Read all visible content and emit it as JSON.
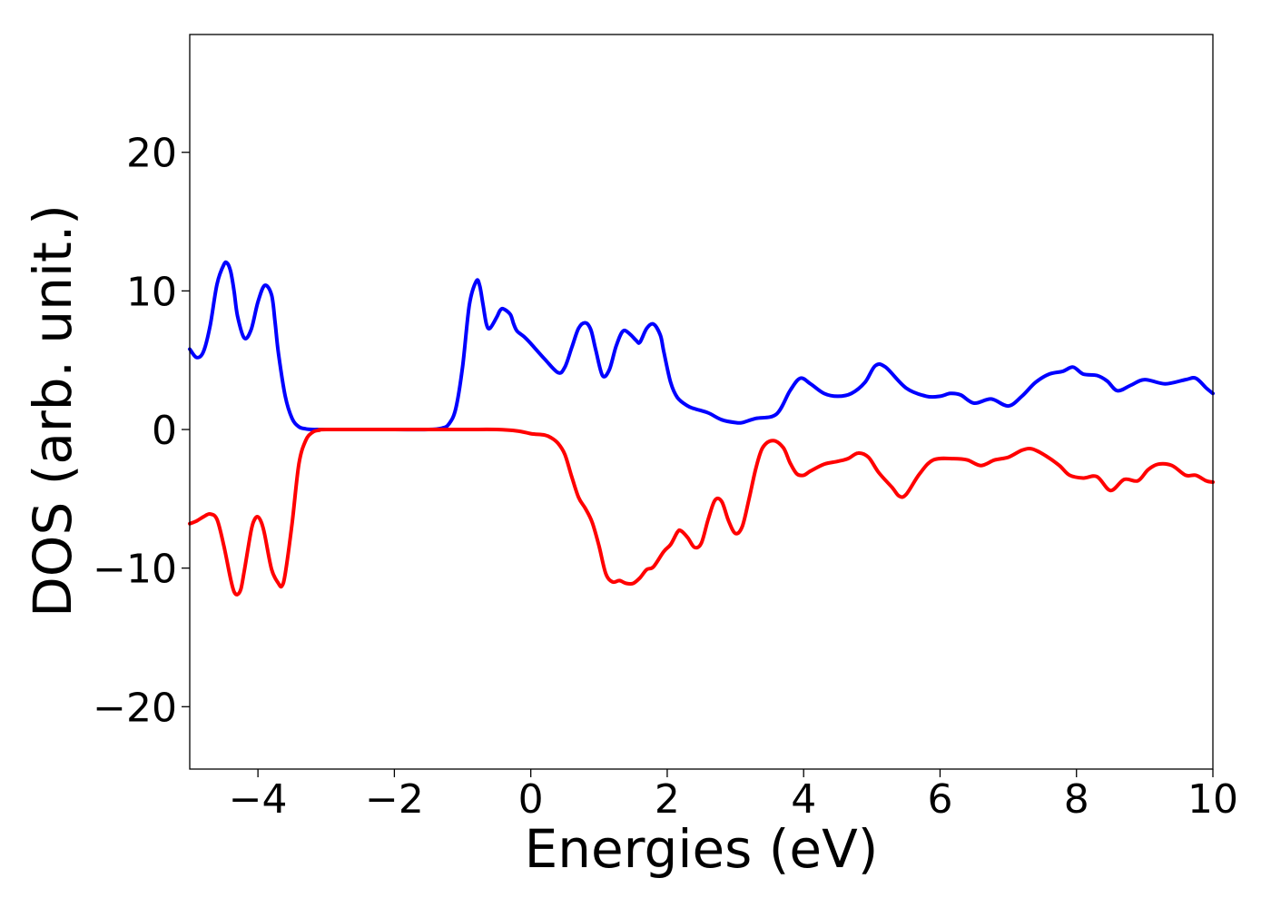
{
  "chart_data": {
    "type": "line",
    "title": "",
    "xlabel": "Energies (eV)",
    "ylabel": "DOS (arb. unit.)",
    "xlim": [
      -5,
      10
    ],
    "ylim": [
      -24.5,
      28.5
    ],
    "xticks": [
      -4,
      -2,
      0,
      2,
      4,
      6,
      8,
      10
    ],
    "yticks": [
      -20,
      -10,
      0,
      10,
      20
    ],
    "grid": false,
    "legend": "none",
    "series": [
      {
        "color": "#0000ff",
        "x": [
          -5.0,
          -4.9,
          -4.8,
          -4.7,
          -4.6,
          -4.5,
          -4.45,
          -4.4,
          -4.35,
          -4.3,
          -4.2,
          -4.1,
          -4.0,
          -3.9,
          -3.8,
          -3.75,
          -3.7,
          -3.6,
          -3.5,
          -3.4,
          -3.3,
          -3.2,
          -3.1,
          -3.0,
          -2.5,
          -2.0,
          -1.5,
          -1.3,
          -1.2,
          -1.1,
          -1.0,
          -0.9,
          -0.8,
          -0.75,
          -0.7,
          -0.65,
          -0.6,
          -0.5,
          -0.45,
          -0.4,
          -0.3,
          -0.25,
          -0.2,
          -0.1,
          0.0,
          0.2,
          0.4,
          0.5,
          0.6,
          0.7,
          0.8,
          0.88,
          0.95,
          1.05,
          1.15,
          1.25,
          1.35,
          1.45,
          1.55,
          1.6,
          1.7,
          1.8,
          1.9,
          1.95,
          2.05,
          2.15,
          2.3,
          2.4,
          2.6,
          2.8,
          3.0,
          3.1,
          3.3,
          3.6,
          3.8,
          3.95,
          4.1,
          4.3,
          4.5,
          4.7,
          4.9,
          5.05,
          5.2,
          5.5,
          5.8,
          6.0,
          6.15,
          6.3,
          6.5,
          6.75,
          7.0,
          7.2,
          7.4,
          7.6,
          7.8,
          7.95,
          8.1,
          8.3,
          8.45,
          8.6,
          8.8,
          9.0,
          9.3,
          9.6,
          9.75,
          9.9,
          10.0
        ],
        "y": [
          5.8,
          5.2,
          5.6,
          7.5,
          10.5,
          11.9,
          12.0,
          11.4,
          10.0,
          8.2,
          6.6,
          7.2,
          9.2,
          10.4,
          9.7,
          7.8,
          5.5,
          2.4,
          0.8,
          0.2,
          0.05,
          0.0,
          0.0,
          0.0,
          0.0,
          0.0,
          0.0,
          0.1,
          0.4,
          1.5,
          4.5,
          9.0,
          10.7,
          10.4,
          9.0,
          7.6,
          7.3,
          8.1,
          8.6,
          8.7,
          8.3,
          7.6,
          7.1,
          6.7,
          6.2,
          5.1,
          4.1,
          4.5,
          5.9,
          7.3,
          7.7,
          7.2,
          5.8,
          3.9,
          4.3,
          6.0,
          7.1,
          6.9,
          6.4,
          6.3,
          7.3,
          7.6,
          6.8,
          5.6,
          3.4,
          2.3,
          1.7,
          1.5,
          1.2,
          0.7,
          0.5,
          0.5,
          0.8,
          1.1,
          2.8,
          3.7,
          3.3,
          2.6,
          2.4,
          2.6,
          3.4,
          4.6,
          4.5,
          3.0,
          2.4,
          2.4,
          2.6,
          2.5,
          1.9,
          2.2,
          1.7,
          2.4,
          3.4,
          4.0,
          4.2,
          4.5,
          4.0,
          3.9,
          3.5,
          2.8,
          3.2,
          3.6,
          3.3,
          3.6,
          3.7,
          3.0,
          2.6
        ]
      },
      {
        "color": "#ff0000",
        "x": [
          -5.0,
          -4.9,
          -4.8,
          -4.7,
          -4.6,
          -4.5,
          -4.4,
          -4.35,
          -4.3,
          -4.25,
          -4.2,
          -4.1,
          -4.05,
          -4.0,
          -3.95,
          -3.9,
          -3.8,
          -3.7,
          -3.65,
          -3.6,
          -3.5,
          -3.4,
          -3.3,
          -3.2,
          -3.1,
          -3.0,
          -2.0,
          -1.0,
          -0.5,
          -0.2,
          0.0,
          0.2,
          0.3,
          0.4,
          0.5,
          0.6,
          0.7,
          0.8,
          0.9,
          1.0,
          1.1,
          1.2,
          1.3,
          1.4,
          1.5,
          1.6,
          1.7,
          1.8,
          1.95,
          2.05,
          2.15,
          2.2,
          2.3,
          2.4,
          2.5,
          2.6,
          2.7,
          2.8,
          2.9,
          3.0,
          3.1,
          3.2,
          3.3,
          3.4,
          3.55,
          3.7,
          3.8,
          3.9,
          4.0,
          4.1,
          4.3,
          4.5,
          4.65,
          4.8,
          4.95,
          5.1,
          5.3,
          5.4,
          5.5,
          5.7,
          5.9,
          6.2,
          6.4,
          6.6,
          6.8,
          7.0,
          7.2,
          7.35,
          7.55,
          7.75,
          7.9,
          8.1,
          8.3,
          8.5,
          8.7,
          8.9,
          9.05,
          9.2,
          9.4,
          9.6,
          9.75,
          9.9,
          10.0
        ],
        "y": [
          -6.8,
          -6.6,
          -6.3,
          -6.1,
          -6.5,
          -8.4,
          -10.8,
          -11.7,
          -11.9,
          -11.5,
          -10.2,
          -7.3,
          -6.5,
          -6.3,
          -6.7,
          -7.6,
          -10.1,
          -11.1,
          -11.3,
          -10.4,
          -6.8,
          -2.5,
          -0.8,
          -0.2,
          -0.05,
          0.0,
          0.0,
          0.0,
          0.0,
          -0.1,
          -0.3,
          -0.4,
          -0.6,
          -1.0,
          -1.8,
          -3.4,
          -4.9,
          -5.7,
          -6.7,
          -8.4,
          -10.4,
          -11.0,
          -10.9,
          -11.1,
          -11.1,
          -10.7,
          -10.1,
          -9.9,
          -8.8,
          -8.3,
          -7.4,
          -7.3,
          -7.8,
          -8.5,
          -8.2,
          -6.5,
          -5.1,
          -5.2,
          -6.6,
          -7.5,
          -7.0,
          -5.0,
          -2.8,
          -1.3,
          -0.8,
          -1.3,
          -2.4,
          -3.2,
          -3.3,
          -3.0,
          -2.5,
          -2.3,
          -2.1,
          -1.7,
          -2.0,
          -3.1,
          -4.2,
          -4.8,
          -4.7,
          -3.2,
          -2.2,
          -2.1,
          -2.2,
          -2.6,
          -2.2,
          -2.0,
          -1.5,
          -1.4,
          -1.9,
          -2.6,
          -3.3,
          -3.5,
          -3.4,
          -4.4,
          -3.6,
          -3.7,
          -2.9,
          -2.5,
          -2.6,
          -3.3,
          -3.3,
          -3.7,
          -3.8
        ]
      }
    ]
  }
}
